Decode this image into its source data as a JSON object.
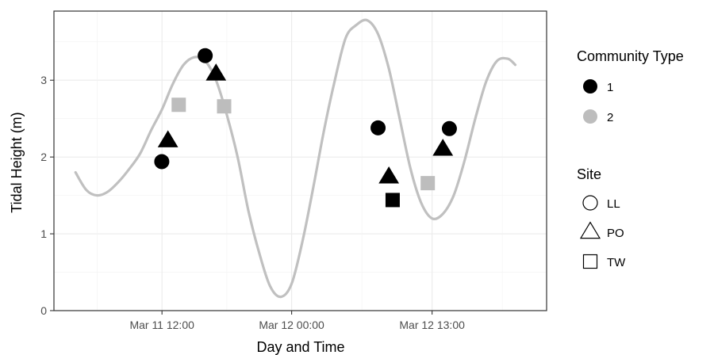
{
  "chart_data": {
    "type": "scatter",
    "title": "",
    "xlabel": "Day and Time",
    "ylabel": "Tidal Height (m)",
    "x_unit": "hours from Mar 11 00:00",
    "xlim": [
      2.0,
      47.6
    ],
    "ylim": [
      0,
      3.9
    ],
    "x_ticks": [
      {
        "value": 12,
        "label": "Mar 11 12:00"
      },
      {
        "value": 24,
        "label": "Mar 12 00:00"
      },
      {
        "value": 37,
        "label": "Mar 12 13:00"
      }
    ],
    "y_ticks": [
      {
        "value": 0,
        "label": "0"
      },
      {
        "value": 1,
        "label": "1"
      },
      {
        "value": 2,
        "label": "2"
      },
      {
        "value": 3,
        "label": "3"
      }
    ],
    "grid": true,
    "tide_curve": {
      "color": "#c0c0c0",
      "x": [
        4.0,
        5.0,
        6.0,
        7.0,
        8.0,
        9.0,
        10.0,
        11.0,
        12.0,
        13.0,
        14.0,
        15.0,
        16.0,
        17.0,
        18.0,
        19.0,
        20.0,
        21.0,
        22.0,
        23.0,
        24.0,
        25.0,
        26.0,
        27.0,
        28.0,
        29.0,
        30.0,
        31.0,
        32.0,
        33.0,
        34.0,
        35.0,
        36.0,
        37.0,
        38.0,
        39.0,
        40.0,
        41.0,
        42.0,
        43.0,
        44.0,
        44.7
      ],
      "y": [
        1.8,
        1.57,
        1.5,
        1.55,
        1.68,
        1.85,
        2.05,
        2.35,
        2.62,
        2.95,
        3.2,
        3.3,
        3.25,
        3.0,
        2.55,
        2.0,
        1.3,
        0.75,
        0.32,
        0.18,
        0.35,
        0.9,
        1.6,
        2.35,
        3.0,
        3.55,
        3.72,
        3.78,
        3.6,
        3.15,
        2.5,
        1.85,
        1.4,
        1.2,
        1.26,
        1.5,
        1.95,
        2.5,
        2.98,
        3.25,
        3.28,
        3.2
      ]
    },
    "points": [
      {
        "x": 11.98,
        "y": 1.94,
        "community": "1",
        "site": "LL"
      },
      {
        "x": 12.55,
        "y": 2.21,
        "community": "1",
        "site": "PO"
      },
      {
        "x": 13.55,
        "y": 2.68,
        "community": "2",
        "site": "TW"
      },
      {
        "x": 16.0,
        "y": 3.32,
        "community": "1",
        "site": "LL"
      },
      {
        "x": 17.0,
        "y": 3.08,
        "community": "1",
        "site": "PO"
      },
      {
        "x": 17.75,
        "y": 2.66,
        "community": "2",
        "site": "TW"
      },
      {
        "x": 32.0,
        "y": 2.38,
        "community": "1",
        "site": "LL"
      },
      {
        "x": 33.0,
        "y": 1.74,
        "community": "1",
        "site": "PO"
      },
      {
        "x": 33.35,
        "y": 1.44,
        "community": "1",
        "site": "TW"
      },
      {
        "x": 36.6,
        "y": 1.66,
        "community": "2",
        "site": "TW"
      },
      {
        "x": 38.0,
        "y": 2.1,
        "community": "1",
        "site": "PO"
      },
      {
        "x": 38.6,
        "y": 2.37,
        "community": "1",
        "site": "LL"
      }
    ],
    "legend": {
      "placement": "right",
      "community": {
        "title": "Community Type",
        "entries": [
          {
            "label": "1",
            "color": "#000000"
          },
          {
            "label": "2",
            "color": "#bdbdbd"
          }
        ]
      },
      "site": {
        "title": "Site",
        "entries": [
          {
            "label": "LL",
            "shape": "circle"
          },
          {
            "label": "PO",
            "shape": "triangle"
          },
          {
            "label": "TW",
            "shape": "square"
          }
        ]
      }
    }
  }
}
